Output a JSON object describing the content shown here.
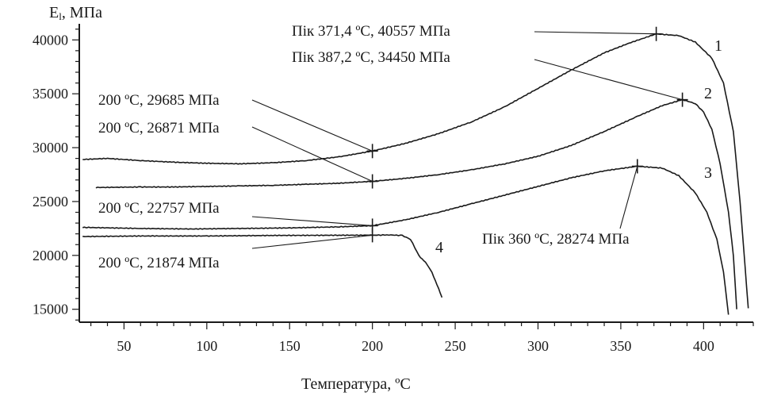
{
  "chart_data": {
    "type": "line",
    "ylabel_main": "E",
    "ylabel_sub": "l",
    "ylabel_unit": ", МПа",
    "xlabel": "Температура, ",
    "xlabel_unit": "ºС",
    "xlim": [
      23,
      430
    ],
    "ylim": [
      13800,
      41200
    ],
    "x_ticks": [
      50,
      100,
      150,
      200,
      250,
      300,
      350,
      400
    ],
    "y_ticks": [
      15000,
      20000,
      25000,
      30000,
      35000,
      40000
    ],
    "series": [
      {
        "name": "1",
        "points": [
          [
            25,
            28900
          ],
          [
            40,
            29000
          ],
          [
            60,
            28800
          ],
          [
            80,
            28650
          ],
          [
            100,
            28550
          ],
          [
            120,
            28500
          ],
          [
            140,
            28600
          ],
          [
            160,
            28800
          ],
          [
            180,
            29150
          ],
          [
            200,
            29685
          ],
          [
            220,
            30400
          ],
          [
            240,
            31300
          ],
          [
            260,
            32400
          ],
          [
            280,
            33800
          ],
          [
            300,
            35500
          ],
          [
            320,
            37200
          ],
          [
            340,
            38800
          ],
          [
            355,
            39700
          ],
          [
            371.4,
            40557
          ],
          [
            385,
            40400
          ],
          [
            395,
            39800
          ],
          [
            405,
            38300
          ],
          [
            412,
            36000
          ],
          [
            418,
            31500
          ],
          [
            422,
            25000
          ],
          [
            425,
            19000
          ],
          [
            427,
            15100
          ]
        ]
      },
      {
        "name": "2",
        "points": [
          [
            33,
            26300
          ],
          [
            60,
            26350
          ],
          [
            80,
            26350
          ],
          [
            100,
            26400
          ],
          [
            120,
            26450
          ],
          [
            140,
            26500
          ],
          [
            160,
            26600
          ],
          [
            180,
            26700
          ],
          [
            200,
            26871
          ],
          [
            220,
            27150
          ],
          [
            240,
            27500
          ],
          [
            260,
            27950
          ],
          [
            280,
            28500
          ],
          [
            300,
            29200
          ],
          [
            320,
            30200
          ],
          [
            340,
            31500
          ],
          [
            360,
            32900
          ],
          [
            375,
            33900
          ],
          [
            387.2,
            34450
          ],
          [
            395,
            34100
          ],
          [
            400,
            33300
          ],
          [
            405,
            31700
          ],
          [
            410,
            28500
          ],
          [
            415,
            24000
          ],
          [
            418,
            20000
          ],
          [
            420,
            15000
          ]
        ]
      },
      {
        "name": "3",
        "points": [
          [
            25,
            22600
          ],
          [
            60,
            22500
          ],
          [
            90,
            22450
          ],
          [
            120,
            22500
          ],
          [
            150,
            22550
          ],
          [
            180,
            22650
          ],
          [
            200,
            22757
          ],
          [
            220,
            23300
          ],
          [
            240,
            24000
          ],
          [
            260,
            24800
          ],
          [
            280,
            25600
          ],
          [
            300,
            26400
          ],
          [
            320,
            27200
          ],
          [
            340,
            27850
          ],
          [
            360,
            28274
          ],
          [
            375,
            28100
          ],
          [
            385,
            27400
          ],
          [
            395,
            25800
          ],
          [
            402,
            24000
          ],
          [
            408,
            21500
          ],
          [
            412,
            18500
          ],
          [
            415,
            14500
          ]
        ]
      },
      {
        "name": "4",
        "points": [
          [
            25,
            21750
          ],
          [
            60,
            21800
          ],
          [
            100,
            21800
          ],
          [
            140,
            21850
          ],
          [
            180,
            21870
          ],
          [
            200,
            21874
          ],
          [
            210,
            21900
          ],
          [
            218,
            21850
          ],
          [
            223,
            21500
          ],
          [
            227,
            20300
          ],
          [
            229,
            19800
          ],
          [
            232,
            19400
          ],
          [
            236,
            18400
          ],
          [
            239,
            17300
          ],
          [
            242,
            16100
          ]
        ]
      }
    ],
    "annotations": [
      {
        "text": "Пік 371,4 ºС, 40557 МПа",
        "x": 371.4,
        "y": 40557
      },
      {
        "text": "Пік 387,2 ºС, 34450 МПа",
        "x": 387.2,
        "y": 34450
      },
      {
        "text": "Пік 360 ºС, 28274 МПа",
        "x": 360,
        "y": 28274
      },
      {
        "text": "200 ºС, 29685 МПа",
        "x": 200,
        "y": 29685
      },
      {
        "text": "200 ºС, 26871 МПа",
        "x": 200,
        "y": 26871
      },
      {
        "text": "200 ºС, 22757 МПа",
        "x": 200,
        "y": 22757
      },
      {
        "text": "200 ºС, 21874 МПа",
        "x": 200,
        "y": 21874
      }
    ]
  }
}
